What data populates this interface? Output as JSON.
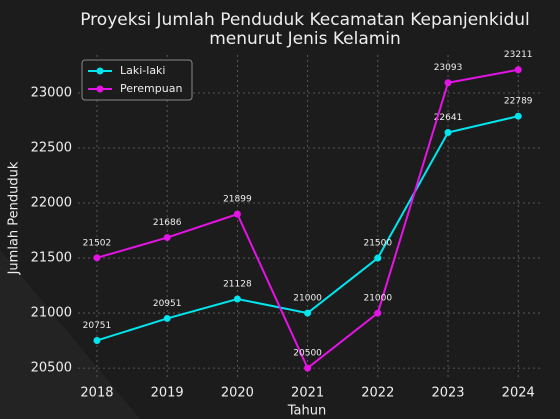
{
  "chart_data": {
    "type": "line",
    "title": "Proyeksi Jumlah Penduduk Kecamatan Kepanjenkidul\nmenurut Jenis Kelamin",
    "xlabel": "Tahun",
    "ylabel": "Jumlah Penduduk",
    "x": [
      2018,
      2019,
      2020,
      2021,
      2022,
      2023,
      2024
    ],
    "xlim": [
      2017.73,
      2024.31
    ],
    "xticks": [
      2018,
      2019,
      2020,
      2021,
      2022,
      2023,
      2024
    ],
    "ylim": [
      20410,
      23345
    ],
    "yticks": [
      20500,
      21000,
      21500,
      22000,
      22500,
      23000
    ],
    "grid": true,
    "legend": "upper left",
    "series": [
      {
        "name": "Laki-laki",
        "color": "#00e5ee",
        "values": [
          20751,
          20951,
          21128,
          21000,
          21500,
          22641,
          22789
        ]
      },
      {
        "name": "Perempuan",
        "color": "#e414e4",
        "values": [
          21502,
          21686,
          21899,
          20500,
          21000,
          23093,
          23211
        ]
      }
    ]
  }
}
